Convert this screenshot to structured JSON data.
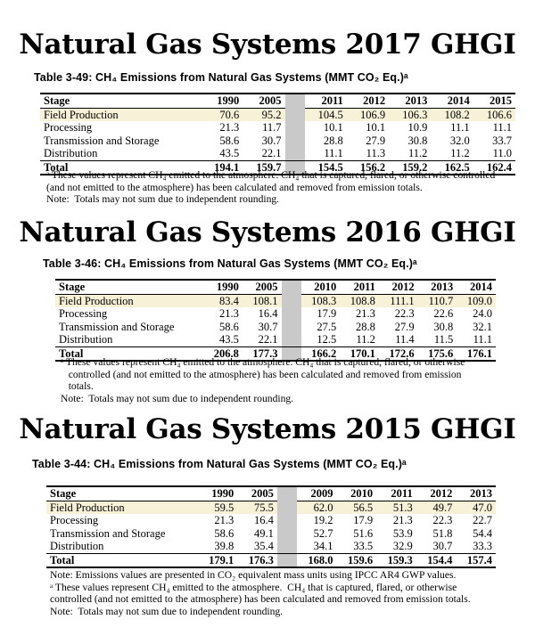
{
  "sections": [
    {
      "heading": "Natural Gas Systems 2017 GHGI",
      "caption": "Table 3-49:  CH₄ Emissions from Natural Gas Systems (MMT CO₂ Eq.)ᵃ",
      "columns": [
        "Stage",
        "1990",
        "2005",
        "2011",
        "2012",
        "2013",
        "2014",
        "2015"
      ],
      "rows": [
        [
          "Field Production",
          "70.6",
          "95.2",
          "104.5",
          "106.9",
          "106.3",
          "108.2",
          "106.6"
        ],
        [
          "Processing",
          "21.3",
          "11.7",
          "10.1",
          "10.1",
          "10.9",
          "11.1",
          "11.1"
        ],
        [
          "Transmission and Storage",
          "58.6",
          "30.7",
          "28.8",
          "27.9",
          "30.8",
          "32.0",
          "33.7"
        ],
        [
          "Distribution",
          "43.5",
          "22.1",
          "11.1",
          "11.3",
          "11.2",
          "11.2",
          "11.0"
        ]
      ],
      "total": [
        "Total",
        "194.1",
        "159.7",
        "154.5",
        "156.2",
        "159.2",
        "162.5",
        "162.4"
      ],
      "notes": [
        "ᵃ These values represent CH₄ emitted to the atmosphere. CH₄ that is captured, flared, or otherwise controlled",
        "(and not emitted to the atmosphere) has been calculated and removed from emission totals.",
        "Note:  Totals may not sum due to independent rounding."
      ]
    },
    {
      "heading": "Natural Gas Systems 2016 GHGI",
      "caption": "Table 3-46:  CH₄ Emissions from Natural Gas Systems (MMT CO₂ Eq.)ᵃ",
      "columns": [
        "Stage",
        "1990",
        "2005",
        "2010",
        "2011",
        "2012",
        "2013",
        "2014"
      ],
      "rows": [
        [
          "Field Production",
          "83.4",
          "108.1",
          "108.3",
          "108.8",
          "111.1",
          "110.7",
          "109.0"
        ],
        [
          "Processing",
          "21.3",
          "16.4",
          "17.9",
          "21.3",
          "22.3",
          "22.6",
          "24.0"
        ],
        [
          "Transmission and Storage",
          "58.6",
          "30.7",
          "27.5",
          "28.8",
          "27.9",
          "30.8",
          "32.1"
        ],
        [
          "Distribution",
          "43.5",
          "22.1",
          "12.5",
          "11.2",
          "11.4",
          "11.5",
          "11.1"
        ]
      ],
      "total": [
        "Total",
        "206.8",
        "177.3",
        "166.2",
        "170.1",
        "172.6",
        "175.6",
        "176.1"
      ],
      "notes": [
        "ᵃ These values represent CH₄ emitted to the atmosphere. CH₄ that is captured, flared, or otherwise",
        "   controlled (and not emitted to the atmosphere) has been calculated and removed from emission",
        "   totals.",
        "Note:  Totals may not sum due to independent rounding."
      ]
    },
    {
      "heading": "Natural Gas Systems 2015 GHGI",
      "caption": "Table 3-44:  CH₄ Emissions from Natural Gas Systems (MMT CO₂ Eq.)ᵃ",
      "columns": [
        "Stage",
        "1990",
        "2005",
        "2009",
        "2010",
        "2011",
        "2012",
        "2013"
      ],
      "rows": [
        [
          "Field Production",
          "59.5",
          "75.5",
          "62.0",
          "56.5",
          "51.3",
          "49.7",
          "47.0"
        ],
        [
          "Processing",
          "21.3",
          "16.4",
          "19.2",
          "17.9",
          "21.3",
          "22.3",
          "22.7"
        ],
        [
          "Transmission and Storage",
          "58.6",
          "49.1",
          "52.7",
          "51.6",
          "53.9",
          "51.8",
          "54.4"
        ],
        [
          "Distribution",
          "39.8",
          "35.4",
          "34.1",
          "33.5",
          "32.9",
          "30.7",
          "33.3"
        ]
      ],
      "total": [
        "Total",
        "179.1",
        "176.3",
        "168.0",
        "159.6",
        "159.3",
        "154.4",
        "157.4"
      ],
      "notes": [
        "Note: Emissions values are presented in CO₂ equivalent mass units using IPCC AR4 GWP values.",
        "ᵃ These values represent CH₄ emitted to the atmosphere.  CH₄ that is captured, flared, or otherwise",
        "controlled (and not emitted to the atmosphere) has been calculated and removed from emission totals.",
        "Note:  Totals may not sum due to independent rounding."
      ]
    }
  ]
}
